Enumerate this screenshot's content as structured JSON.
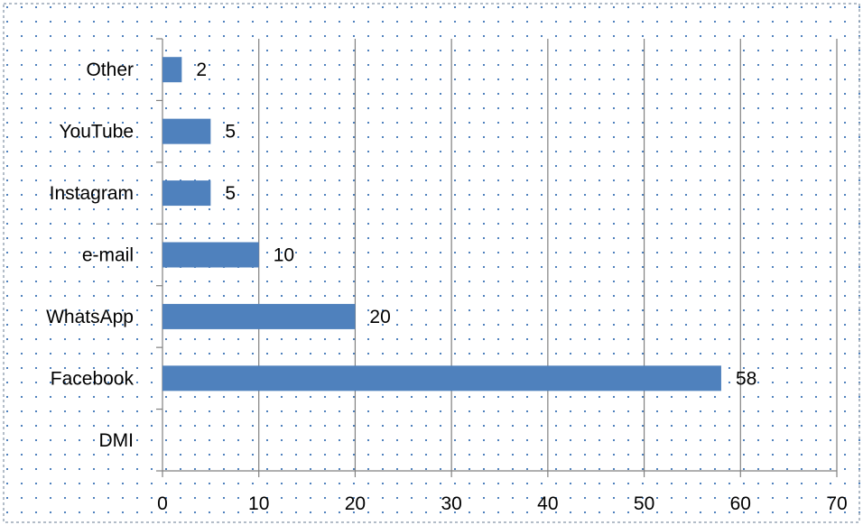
{
  "chart_data": {
    "type": "bar",
    "orientation": "horizontal",
    "title": "",
    "xlabel": "",
    "ylabel": "",
    "categories": [
      "DMI",
      "Facebook",
      "WhatsApp",
      "e-mail",
      "Instagram",
      "YouTube",
      "Other"
    ],
    "values": [
      null,
      58,
      20,
      10,
      5,
      5,
      2
    ],
    "data_labels": [
      "",
      "58",
      "20",
      "10",
      "5",
      "5",
      "2"
    ],
    "xlim": [
      0,
      70
    ],
    "xticks": [
      0,
      10,
      20,
      30,
      40,
      50,
      60,
      70
    ],
    "xtick_labels": [
      "0",
      "10",
      "20",
      "30",
      "40",
      "50",
      "60",
      "70"
    ],
    "grid": "vertical",
    "legend": "none",
    "bar_color": "#4f81bd",
    "gridline_color": "#808080",
    "background_pattern": "dotted",
    "pattern_color": "#4f81bd"
  }
}
